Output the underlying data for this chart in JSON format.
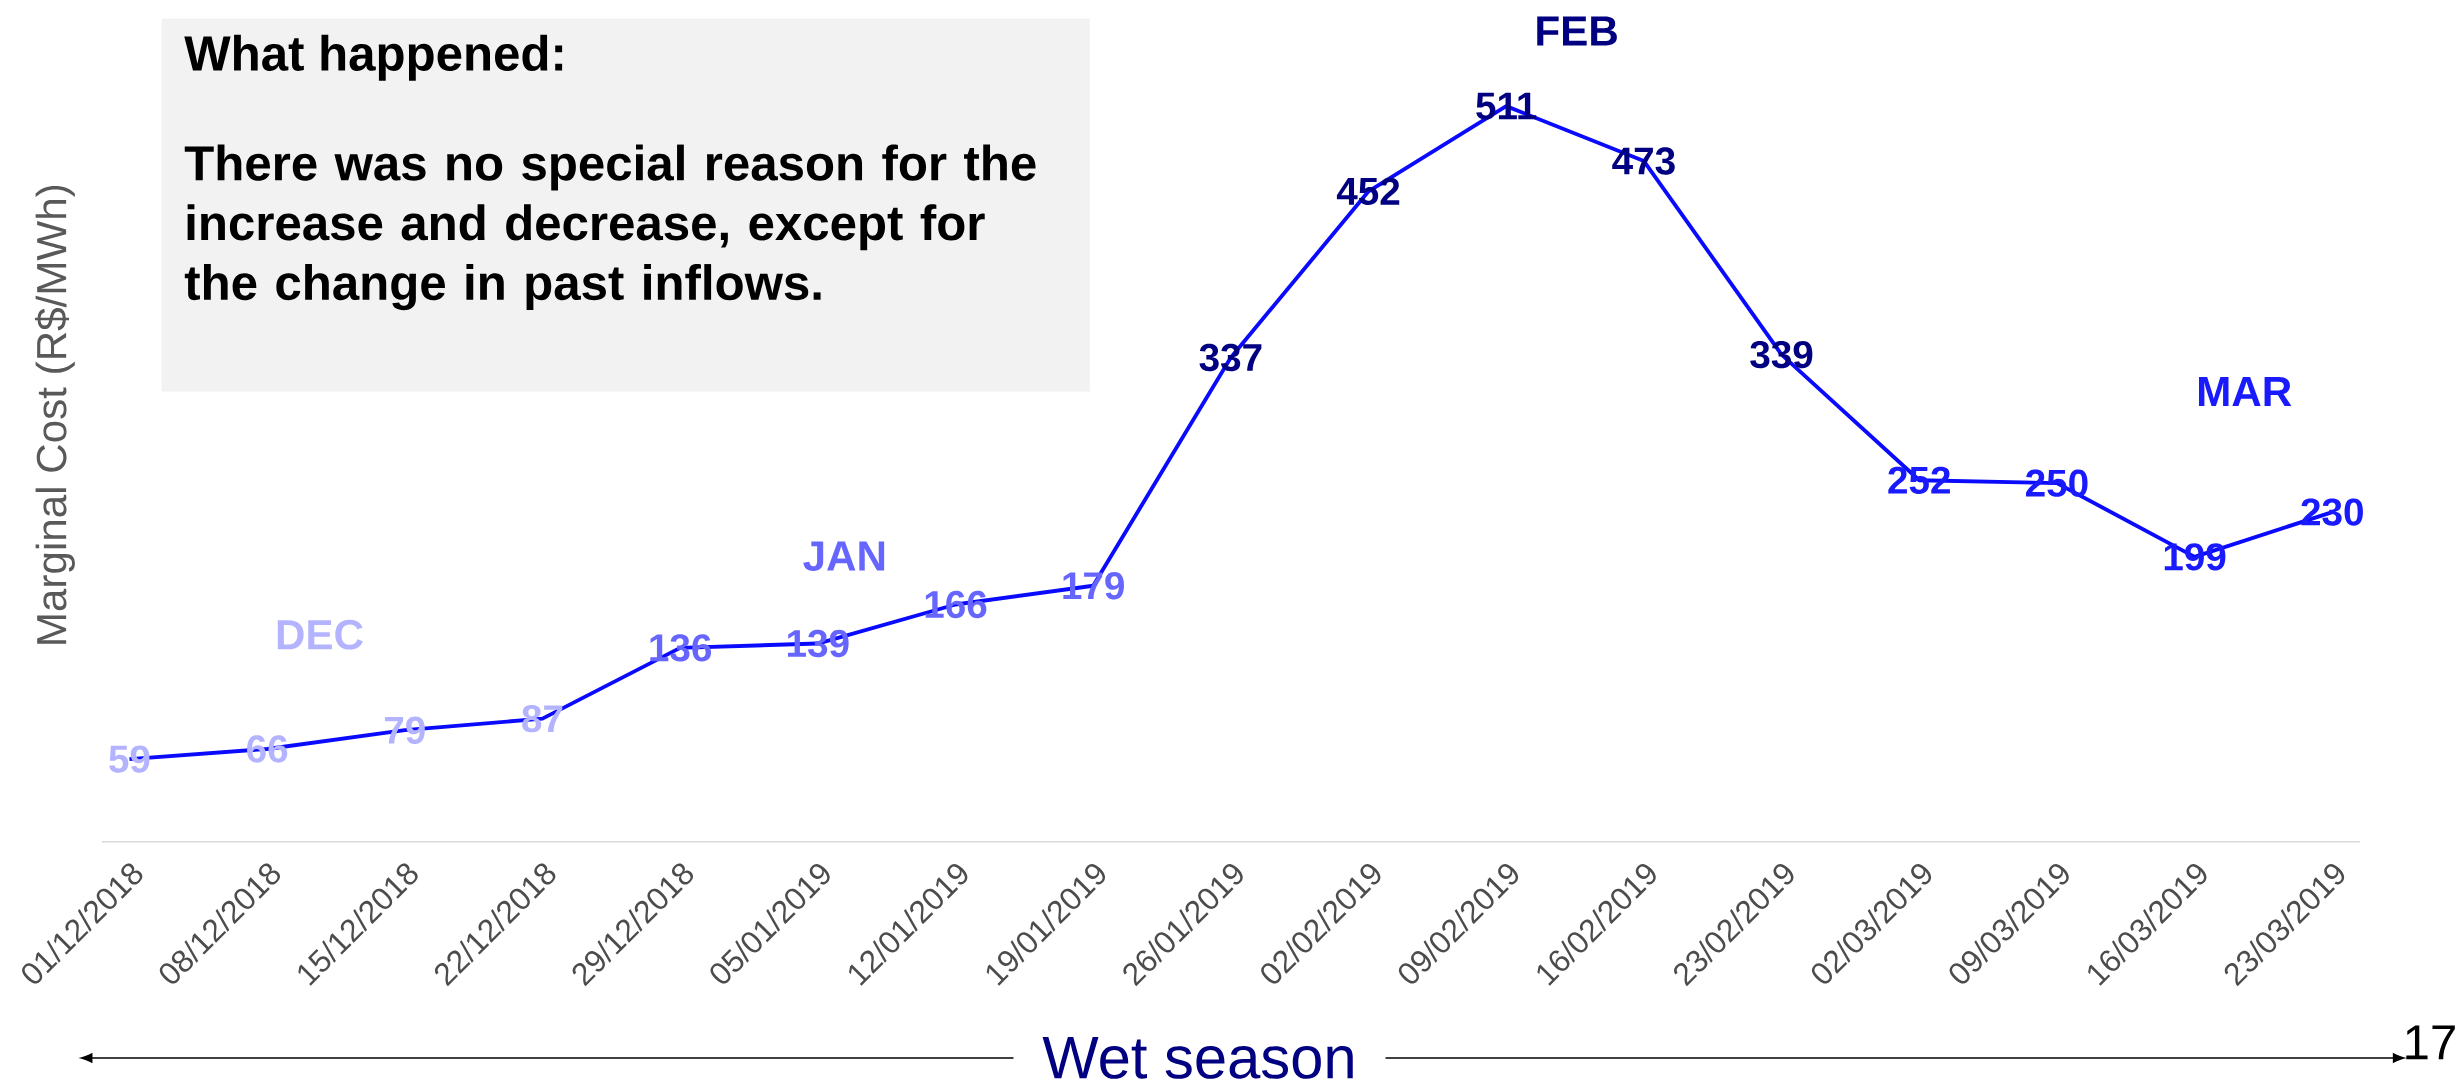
{
  "chart_data": {
    "type": "line",
    "ylabel": "Marginal Cost (R$/MWh)",
    "xlabel": "Wet season",
    "categories": [
      "01/12/2018",
      "08/12/2018",
      "15/12/2018",
      "22/12/2018",
      "29/12/2018",
      "05/01/2019",
      "12/01/2019",
      "19/01/2019",
      "26/01/2019",
      "02/02/2019",
      "09/02/2019",
      "16/02/2019",
      "23/02/2019",
      "02/03/2019",
      "09/03/2019",
      "16/03/2019",
      "23/03/2019"
    ],
    "values": [
      59,
      66,
      79,
      87,
      136,
      139,
      166,
      179,
      337,
      452,
      511,
      473,
      339,
      252,
      250,
      199,
      230
    ],
    "color": "#0a0aff",
    "colors": [
      "#b3b3ff",
      "#b3b3ff",
      "#b3b3ff",
      "#b3b3ff",
      "#6666ff",
      "#6666ff",
      "#6666ff",
      "#6666ff",
      "#000080",
      "#000080",
      "#000080",
      "#000080",
      "#000080",
      "#1a1aff",
      "#1a1aff",
      "#1a1aff",
      "#1a1aff"
    ],
    "data_labels": true,
    "annotations": [
      "What happened:",
      "There was no special reason for the increase and decrease, except for the change in past inflows.",
      "DEC",
      "JAN",
      "FEB",
      "MAR",
      "17"
    ]
  }
}
